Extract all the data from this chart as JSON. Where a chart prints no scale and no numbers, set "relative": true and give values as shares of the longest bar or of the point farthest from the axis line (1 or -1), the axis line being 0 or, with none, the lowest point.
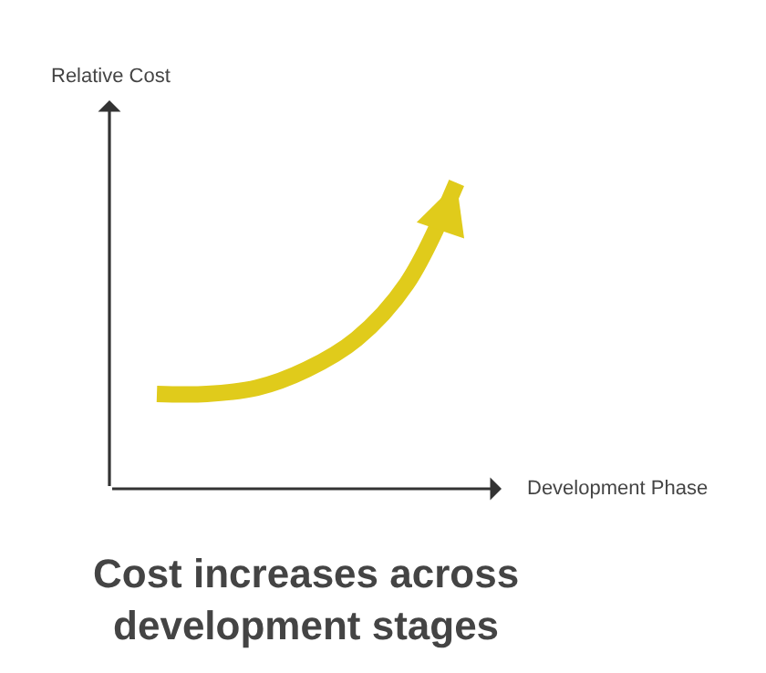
{
  "chart_data": {
    "type": "line",
    "relative": true,
    "title": "Cost increases across development stages",
    "xlabel": "Development Phase",
    "ylabel": "Relative Cost",
    "categories": [
      null,
      null,
      null,
      null,
      null,
      null,
      null
    ],
    "series": [
      {
        "color": "#e0cb1b",
        "values": [
          0.31,
          0.31,
          0.33,
          0.39,
          0.49,
          0.67,
          1.0
        ]
      }
    ],
    "marker": "none",
    "line_style": "solid"
  }
}
